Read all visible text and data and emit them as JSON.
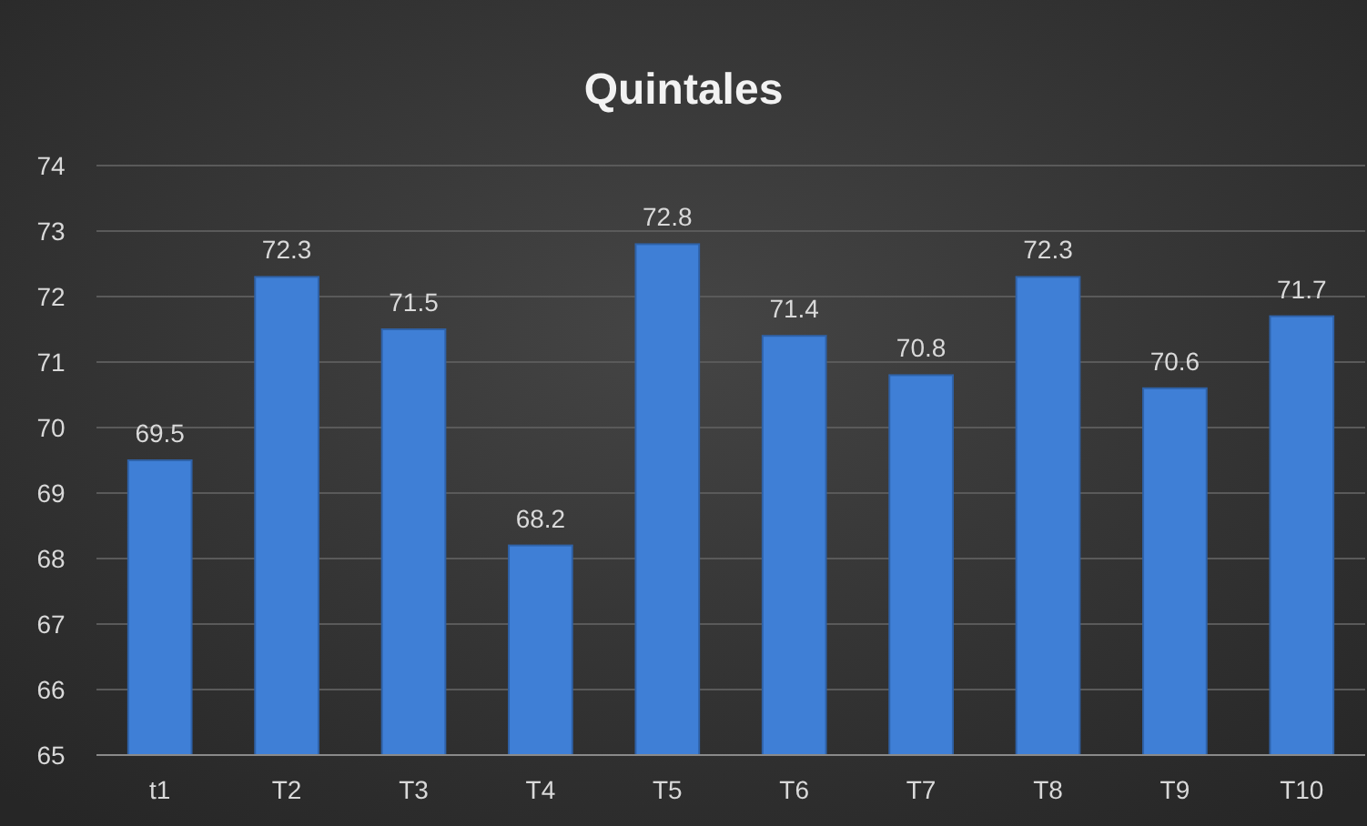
{
  "chart_data": {
    "type": "bar",
    "title": "Quintales",
    "categories": [
      "t1",
      "T2",
      "T3",
      "T4",
      "T5",
      "T6",
      "T7",
      "T8",
      "T9",
      "T10"
    ],
    "values": [
      69.5,
      72.3,
      71.5,
      68.2,
      72.8,
      71.4,
      70.8,
      72.3,
      70.6,
      71.7
    ],
    "color": "#3f7fd6",
    "ylim": [
      65,
      74
    ],
    "yticks": [
      65,
      66,
      67,
      68,
      69,
      70,
      71,
      72,
      73,
      74
    ],
    "grid": "y",
    "data_labels": true
  }
}
